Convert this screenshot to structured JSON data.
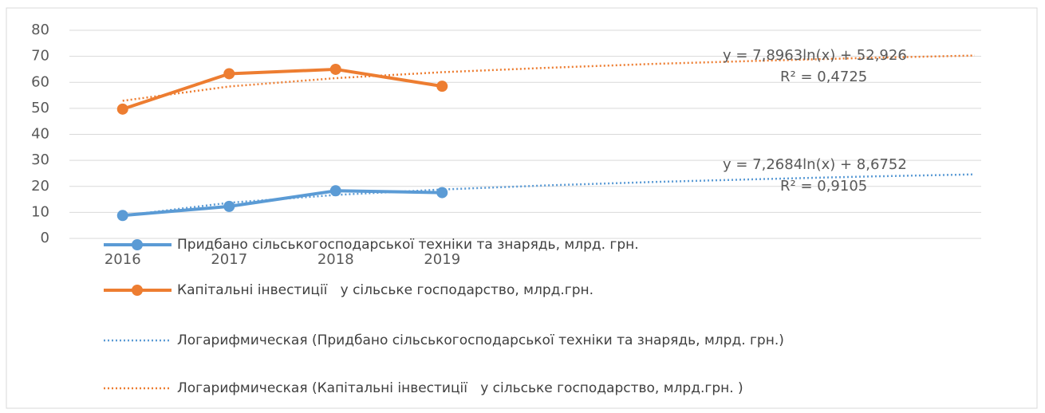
{
  "chart_data": {
    "type": "line",
    "categories": [
      "2016",
      "2017",
      "2018",
      "2019",
      null,
      null,
      null,
      null,
      null
    ],
    "ylim": [
      0,
      80
    ],
    "yticks": [
      0,
      10,
      20,
      30,
      40,
      50,
      60,
      70,
      80
    ],
    "grid": true,
    "legend": "bottom",
    "series": [
      {
        "name": "Придбано сільськогосподарської техніки та знарядь, млрд. грн.",
        "color": "#5b9bd5",
        "style": "solid",
        "markers": true,
        "values": [
          8.8,
          12.3,
          18.3,
          17.6,
          null,
          null,
          null,
          null,
          null
        ]
      },
      {
        "name": "Капітальні інвестиції   у сільське господарство, млрд.грн.",
        "color": "#ed7d31",
        "style": "solid",
        "markers": true,
        "values": [
          49.7,
          63.3,
          65.0,
          58.5,
          null,
          null,
          null,
          null,
          null
        ]
      },
      {
        "name": "Логарифмическая (Придбано сільськогосподарської техніки та знарядь, млрд. грн.)",
        "color": "#5b9bd5",
        "style": "dotted",
        "markers": false,
        "values": [
          8.7,
          13.7,
          16.7,
          18.8,
          20.4,
          21.7,
          22.8,
          23.8,
          24.6
        ]
      },
      {
        "name": "Логарифмическая (Капітальні інвестиції   у сільське господарство, млрд.грн. )",
        "color": "#ed7d31",
        "style": "dotted",
        "markers": false,
        "values": [
          52.9,
          58.4,
          61.6,
          63.9,
          65.6,
          67.1,
          68.3,
          69.4,
          70.3
        ]
      }
    ],
    "annotations": [
      "y = 7,8963ln(x) + 52,926",
      "R² = 0,4725",
      "y = 7,2684ln(x) + 8,6752",
      "R² = 0,9105"
    ]
  }
}
